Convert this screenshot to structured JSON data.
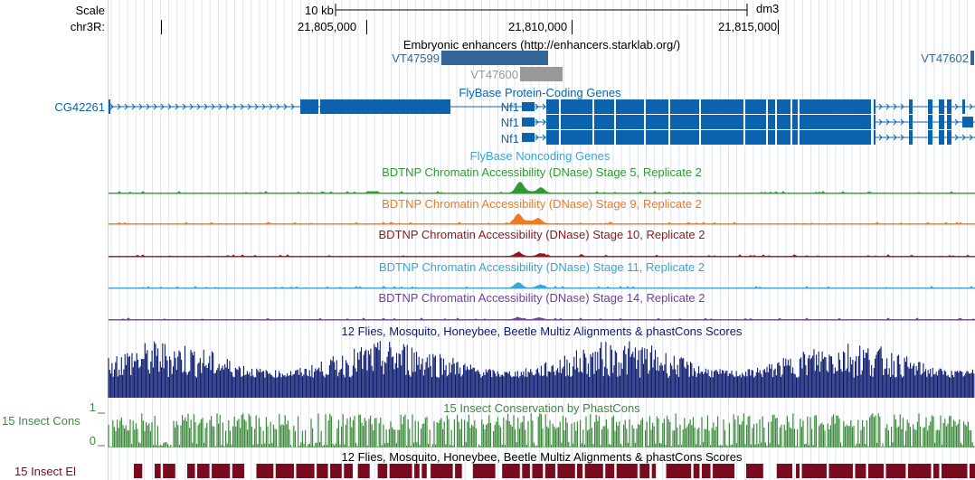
{
  "ruler": {
    "scale_label": "Scale",
    "chrom_label": "chr3R:",
    "scale_bar_text": "10 kb",
    "assembly": "dm3",
    "positions": [
      "21,805,000",
      "21,810,000",
      "21,815,000"
    ]
  },
  "tracks": {
    "enhancers": {
      "title": "Embryonic enhancers (http://enhancers.starklab.org/)",
      "items": [
        "VT47599",
        "VT47600",
        "VT47602"
      ],
      "colors": {
        "active": "#336699",
        "inactive": "#999999"
      }
    },
    "flybase_coding": {
      "title": "FlyBase Protein-Coding Genes",
      "genes": [
        "CG42261",
        "Nf1",
        "Nf1",
        "Nf1"
      ],
      "color": "#0b63b0"
    },
    "flybase_noncoding": {
      "title": "FlyBase Noncoding Genes"
    },
    "dnase": [
      {
        "title": "BDTNP Chromatin Accessibility (DNase) Stage 5, Replicate 2",
        "color": "#2f9a2f"
      },
      {
        "title": "BDTNP Chromatin Accessibility (DNase) Stage 9, Replicate 2",
        "color": "#ee7a21"
      },
      {
        "title": "BDTNP Chromatin Accessibility (DNase) Stage 10, Replicate 2",
        "color": "#8b1a1a"
      },
      {
        "title": "BDTNP Chromatin Accessibility (DNase) Stage 11, Replicate 2",
        "color": "#3aa5d6"
      },
      {
        "title": "BDTNP Chromatin Accessibility (DNase) Stage 14, Replicate 2",
        "color": "#7140a0"
      }
    ],
    "multiz": {
      "title": "12 Flies, Mosquito, Honeybee, Beetle Multiz Alignments & phastCons Scores",
      "color": "#0b1a6e"
    },
    "phastcons": {
      "title": "15 Insect Conservation by PhastCons",
      "side_label": "15 Insect Cons",
      "y_max": "1",
      "y_min": "0",
      "color": "#3d8a3d"
    },
    "elements": {
      "title": "12 Flies, Mosquito, Honeybee, Beetle Multiz Alignments & phastCons Scores",
      "side_label": "15 Insect El",
      "color": "#7a0a1e"
    }
  }
}
